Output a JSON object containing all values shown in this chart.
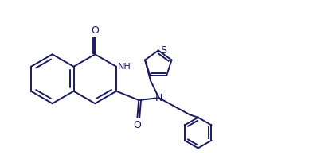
{
  "bg_color": "#ffffff",
  "line_color": "#1a1a5e",
  "line_width": 1.4,
  "figsize": [
    3.88,
    1.95
  ],
  "dpi": 100,
  "xlim": [
    0,
    11
  ],
  "ylim": [
    0,
    5.5
  ]
}
